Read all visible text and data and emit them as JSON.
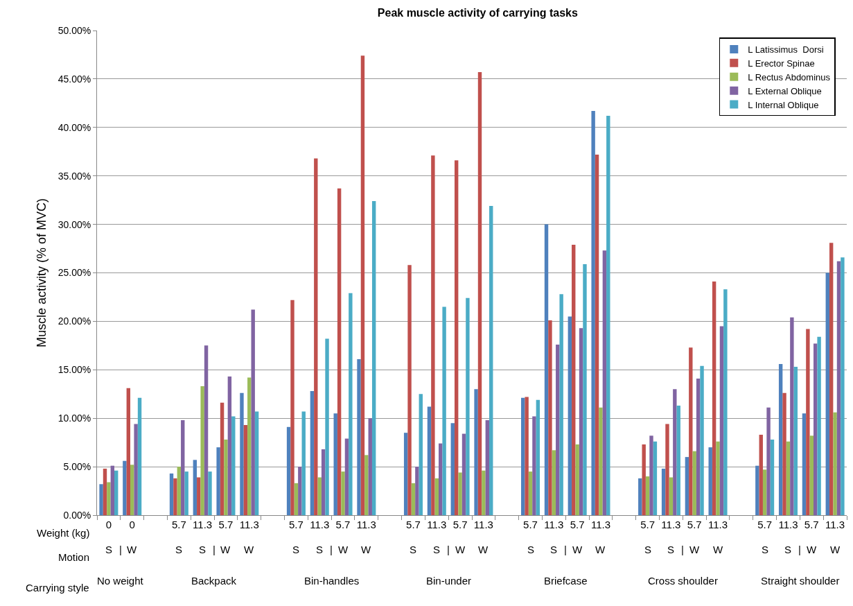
{
  "chart_data": {
    "type": "bar",
    "title": "Peak muscle activity of carrying tasks",
    "ylabel": "Muscle activity (% of MVC)",
    "categories": [
      "0",
      "0",
      null,
      "5.7",
      "11.3",
      "5.7",
      "11.3",
      null,
      "5.7",
      "11.3",
      "5.7",
      "11.3",
      null,
      "5.7",
      "11.3",
      "5.7",
      "11.3",
      null,
      "5.7",
      "11.3",
      "5.7",
      "11.3",
      null,
      "5.7",
      "11.3",
      "5.7",
      "11.3",
      null,
      "5.7",
      "11.3",
      "5.7",
      "11.3"
    ],
    "series": [
      {
        "name": "L Latissimus  Dorsi",
        "color": "#4f81bd",
        "values": [
          3.2,
          5.6,
          null,
          4.3,
          5.7,
          7.0,
          12.6,
          null,
          9.1,
          12.8,
          10.5,
          16.1,
          null,
          8.5,
          11.2,
          9.5,
          13.0,
          null,
          12.1,
          30.0,
          20.5,
          41.7,
          null,
          3.8,
          4.8,
          6.0,
          7.0,
          null,
          5.1,
          15.6,
          10.5,
          25.0
        ]
      },
      {
        "name": "L Erector Spinae",
        "color": "#c0504d",
        "values": [
          4.8,
          13.1,
          null,
          3.8,
          3.9,
          11.6,
          9.3,
          null,
          22.2,
          36.8,
          33.7,
          47.4,
          null,
          25.8,
          37.1,
          36.6,
          45.7,
          null,
          12.2,
          20.1,
          27.9,
          37.2,
          null,
          7.3,
          9.4,
          17.3,
          24.1,
          null,
          8.3,
          12.6,
          19.2,
          28.1
        ]
      },
      {
        "name": "L Rectus Abdominus",
        "color": "#9bbb59",
        "values": [
          3.4,
          5.2,
          null,
          5.0,
          13.3,
          7.8,
          14.2,
          null,
          3.3,
          3.9,
          4.5,
          6.2,
          null,
          3.3,
          3.8,
          4.4,
          4.6,
          null,
          4.5,
          6.7,
          7.3,
          11.1,
          null,
          4.0,
          3.9,
          6.6,
          7.6,
          null,
          4.7,
          7.6,
          8.2,
          10.6
        ]
      },
      {
        "name": "L External Oblique",
        "color": "#8064a2",
        "values": [
          5.1,
          9.4,
          null,
          9.8,
          17.5,
          14.3,
          21.2,
          null,
          5.0,
          6.8,
          7.9,
          10.0,
          null,
          5.0,
          7.4,
          8.4,
          9.8,
          null,
          10.2,
          17.6,
          19.3,
          27.3,
          null,
          8.2,
          13.0,
          14.1,
          19.5,
          null,
          11.1,
          20.4,
          17.7,
          26.2
        ]
      },
      {
        "name": "L Internal Oblique",
        "color": "#4bacc6",
        "values": [
          4.6,
          12.1,
          null,
          4.5,
          4.5,
          10.2,
          10.7,
          null,
          10.7,
          18.2,
          22.9,
          32.4,
          null,
          12.5,
          21.5,
          22.4,
          31.9,
          null,
          11.9,
          22.8,
          25.9,
          41.2,
          null,
          7.6,
          11.3,
          15.4,
          23.3,
          null,
          7.8,
          15.3,
          18.4,
          26.6
        ]
      }
    ],
    "ylim": [
      0,
      50
    ],
    "yticks": [
      {
        "value": 0,
        "label": "0.00%"
      },
      {
        "value": 5,
        "label": "5.00%"
      },
      {
        "value": 10,
        "label": "10.00%"
      },
      {
        "value": 15,
        "label": "15.00%"
      },
      {
        "value": 20,
        "label": "20.00%"
      },
      {
        "value": 25,
        "label": "25.00%"
      },
      {
        "value": 30,
        "label": "30.00%"
      },
      {
        "value": 35,
        "label": "35.00%"
      },
      {
        "value": 40,
        "label": "40.00%"
      },
      {
        "value": 45,
        "label": "45.00%"
      },
      {
        "value": 50,
        "label": "50.00%"
      }
    ],
    "grid": "y",
    "legend": "top right",
    "annotations": [
      "Weight (kg)",
      "Motion",
      "Carrying style",
      "S",
      "W",
      "|",
      "No weight",
      "S",
      "S",
      "W",
      "W",
      "|",
      "Backpack",
      "S",
      "S",
      "W",
      "W",
      "|",
      "Bin-handles",
      "S",
      "S",
      "W",
      "W",
      "|",
      "Bin-under",
      "S",
      "S",
      "W",
      "W",
      "|",
      "Briefcase",
      "S",
      "S",
      "W",
      "W",
      "|",
      "Cross shoulder",
      "S",
      "S",
      "W",
      "W",
      "|",
      "Straight shoulder"
    ]
  }
}
